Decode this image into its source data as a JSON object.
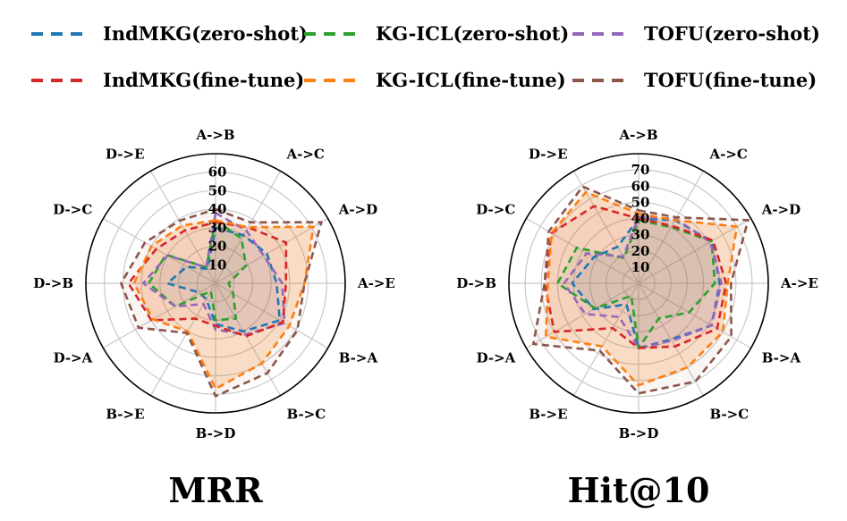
{
  "legend": [
    {
      "name": "IndMKG(zero-shot)",
      "color": "#1f77b4"
    },
    {
      "name": "KG-ICL(zero-shot)",
      "color": "#2ca02c"
    },
    {
      "name": "TOFU(zero-shot)",
      "color": "#9467bd"
    },
    {
      "name": "IndMKG(fine-tune)",
      "color": "#d62728"
    },
    {
      "name": "KG-ICL(fine-tune)",
      "color": "#ff7f0e"
    },
    {
      "name": "TOFU(fine-tune)",
      "color": "#8c564b"
    }
  ],
  "chart_data": [
    {
      "type": "radar",
      "title": "MRR",
      "categories": [
        "A->B",
        "A->C",
        "A->D",
        "A->E",
        "B->A",
        "B->C",
        "B->D",
        "B->E",
        "D->A",
        "D->B",
        "D->C",
        "D->E"
      ],
      "rmax": 70,
      "ticks": [
        10,
        20,
        30,
        40,
        50,
        60
      ],
      "series": [
        {
          "name": "IndMKG(zero-shot)",
          "color": "#1f77b4",
          "fill": false,
          "values": [
            30,
            30,
            32,
            33,
            40,
            30,
            22,
            10,
            10,
            26,
            18,
            9
          ]
        },
        {
          "name": "KG-ICL(zero-shot)",
          "color": "#2ca02c",
          "fill": false,
          "values": [
            34,
            28,
            19,
            7,
            11,
            22,
            20,
            5,
            25,
            36,
            31,
            10
          ]
        },
        {
          "name": "TOFU(zero-shot)",
          "color": "#9467bd",
          "fill": false,
          "values": [
            38,
            33,
            30,
            36,
            43,
            32,
            25,
            13,
            25,
            39,
            30,
            10
          ]
        },
        {
          "name": "IndMKG(fine-tune)",
          "color": "#d62728",
          "fill": false,
          "values": [
            33,
            35,
            44,
            38,
            42,
            33,
            23,
            22,
            40,
            47,
            37,
            33
          ]
        },
        {
          "name": "KG-ICL(fine-tune)",
          "color": "#ff7f0e",
          "fill": true,
          "values": [
            34,
            35,
            61,
            48,
            46,
            50,
            57,
            30,
            39,
            44,
            40,
            36
          ]
        },
        {
          "name": "TOFU(fine-tune)",
          "color": "#8c564b",
          "fill": false,
          "values": [
            40,
            38,
            66,
            48,
            51,
            56,
            61,
            31,
            48,
            51,
            44,
            39
          ]
        }
      ]
    },
    {
      "type": "radar",
      "title": "Hit@10",
      "categories": [
        "A->B",
        "A->C",
        "A->D",
        "A->E",
        "B->A",
        "B->C",
        "B->D",
        "B->E",
        "D->A",
        "D->B",
        "D->C",
        "D->E"
      ],
      "rmax": 80,
      "ticks": [
        10,
        20,
        30,
        40,
        50,
        60,
        70
      ],
      "series": [
        {
          "name": "IndMKG(zero-shot)",
          "color": "#1f77b4",
          "fill": false,
          "values": [
            40,
            45,
            52,
            50,
            52,
            40,
            40,
            15,
            32,
            41,
            32,
            26
          ]
        },
        {
          "name": "KG-ICL(zero-shot)",
          "color": "#2ca02c",
          "fill": false,
          "values": [
            39,
            40,
            52,
            47,
            36,
            25,
            40,
            9,
            31,
            50,
            44,
            18
          ]
        },
        {
          "name": "TOFU(zero-shot)",
          "color": "#9467bd",
          "fill": false,
          "values": [
            41,
            46,
            51,
            51,
            52,
            41,
            40,
            24,
            38,
            46,
            37,
            19
          ]
        },
        {
          "name": "IndMKG(fine-tune)",
          "color": "#d62728",
          "fill": false,
          "values": [
            40,
            41,
            53,
            54,
            56,
            45,
            40,
            32,
            60,
            58,
            62,
            55
          ]
        },
        {
          "name": "KG-ICL(fine-tune)",
          "color": "#ff7f0e",
          "fill": true,
          "values": [
            43,
            45,
            70,
            55,
            60,
            60,
            63,
            45,
            66,
            56,
            62,
            65
          ]
        },
        {
          "name": "TOFU(fine-tune)",
          "color": "#8c564b",
          "fill": false,
          "values": [
            45,
            47,
            78,
            57,
            66,
            70,
            68,
            48,
            75,
            58,
            64,
            69
          ]
        }
      ]
    }
  ]
}
